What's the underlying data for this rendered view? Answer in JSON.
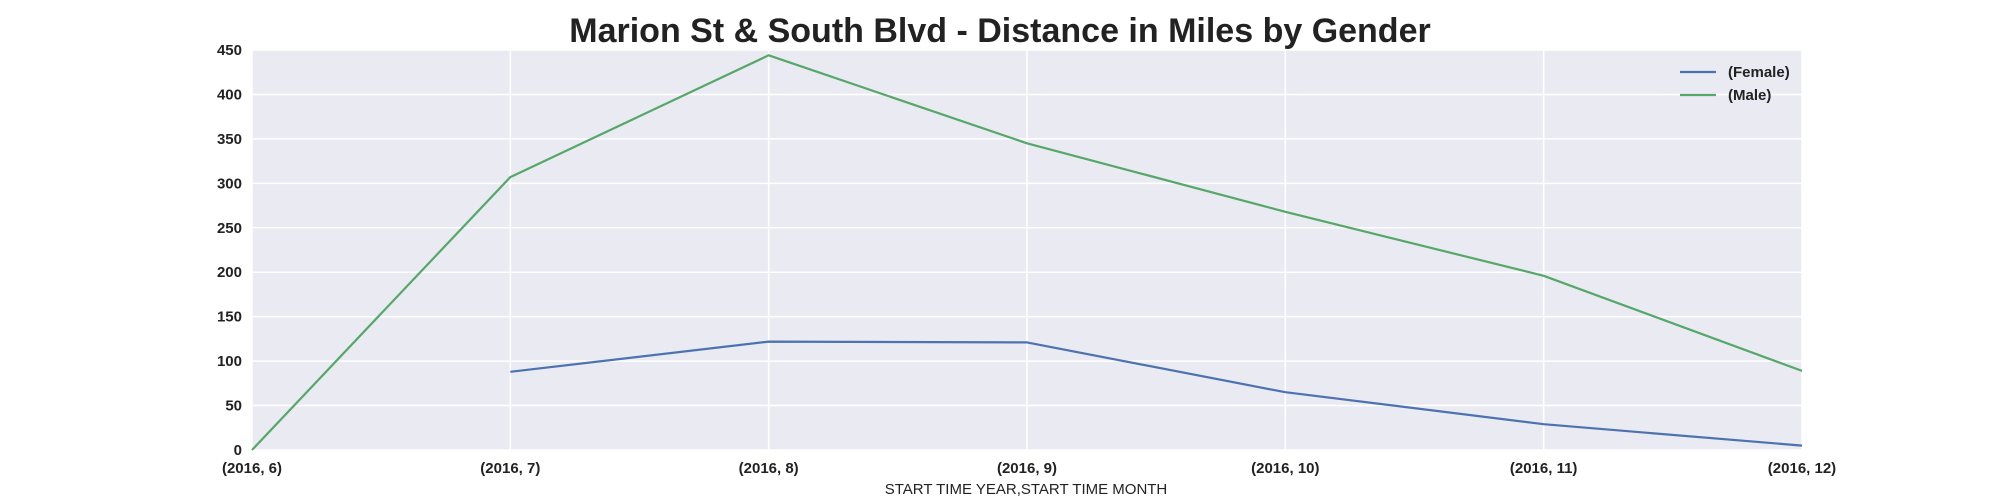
{
  "chart_data": {
    "type": "line",
    "title": "Marion St & South Blvd - Distance in Miles by Gender",
    "xlabel": "START TIME YEAR,START TIME MONTH",
    "ylabel": "",
    "categories": [
      "(2016, 6)",
      "(2016, 7)",
      "(2016, 8)",
      "(2016, 9)",
      "(2016, 10)",
      "(2016, 11)",
      "(2016, 12)"
    ],
    "yticks": [
      0,
      50,
      100,
      150,
      200,
      250,
      300,
      350,
      400,
      450
    ],
    "ylim": [
      0,
      450
    ],
    "grid": true,
    "legend_position": "top-right",
    "series": [
      {
        "name": "(Female)",
        "color": "#4c72b0",
        "values": [
          null,
          88,
          122,
          121,
          65,
          29,
          5
        ]
      },
      {
        "name": "(Male)",
        "color": "#55a868",
        "values": [
          0,
          307,
          444,
          345,
          268,
          196,
          89
        ]
      }
    ],
    "colors": {
      "plot_background": "#eaeaf2",
      "grid": "#ffffff"
    }
  }
}
